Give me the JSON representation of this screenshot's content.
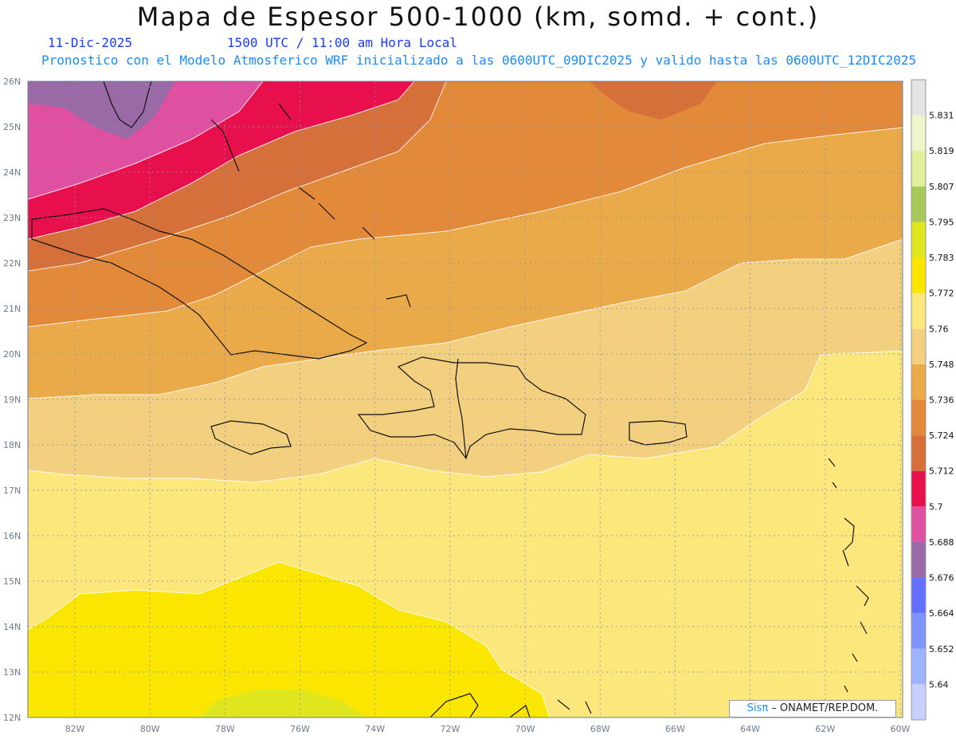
{
  "header": {
    "title": "Mapa de Espesor 500-1000 (km, somd. + cont.)",
    "date": "11-Dic-2025",
    "time": "1500 UTC / 11:00 am Hora Local",
    "model_line": "Pronostico con el Modelo Atmosferico WRF inicializado a las 0600UTC_09DIC2025 y valido hasta las  0600UTC_12DIC2025"
  },
  "axes": {
    "lat_labels": [
      "26N",
      "25N",
      "24N",
      "23N",
      "22N",
      "21N",
      "20N",
      "19N",
      "18N",
      "17N",
      "16N",
      "15N",
      "14N",
      "13N",
      "12N"
    ],
    "lon_labels": [
      "82W",
      "80W",
      "78W",
      "76W",
      "74W",
      "72W",
      "70W",
      "68W",
      "66W",
      "64W",
      "62W",
      "60W"
    ]
  },
  "colorbar": {
    "levels": [
      "5.64",
      "5.652",
      "5.664",
      "5.676",
      "5.688",
      "5.7",
      "5.712",
      "5.724",
      "5.736",
      "5.748",
      "5.76",
      "5.772",
      "5.783",
      "5.795",
      "5.807",
      "5.819",
      "5.831"
    ],
    "colors": [
      "#c8d0ff",
      "#9fb4ff",
      "#7e95ff",
      "#6470ff",
      "#9a6aa6",
      "#e050a0",
      "#e8104c",
      "#d6703a",
      "#e38a3a",
      "#ebaa4a",
      "#f2d080",
      "#fce77c",
      "#fae600",
      "#e0e61e",
      "#a8c85a",
      "#dfef9a",
      "#eef5cc",
      "#e4e4e4"
    ]
  },
  "map": {
    "fill_colors": {
      "purple": "#9a6aa6",
      "pink": "#e050a0",
      "red": "#e8104c",
      "dark_orange": "#d6703a",
      "orange": "#e38a3a",
      "light_orange": "#ebaa4a",
      "tan": "#f2d080",
      "light_yellow": "#fce77c",
      "yellow": "#fae600",
      "lime": "#e0e61e"
    }
  },
  "credit": {
    "brand": "Sisπ",
    "org": " – ONAMET/REP.DOM."
  }
}
